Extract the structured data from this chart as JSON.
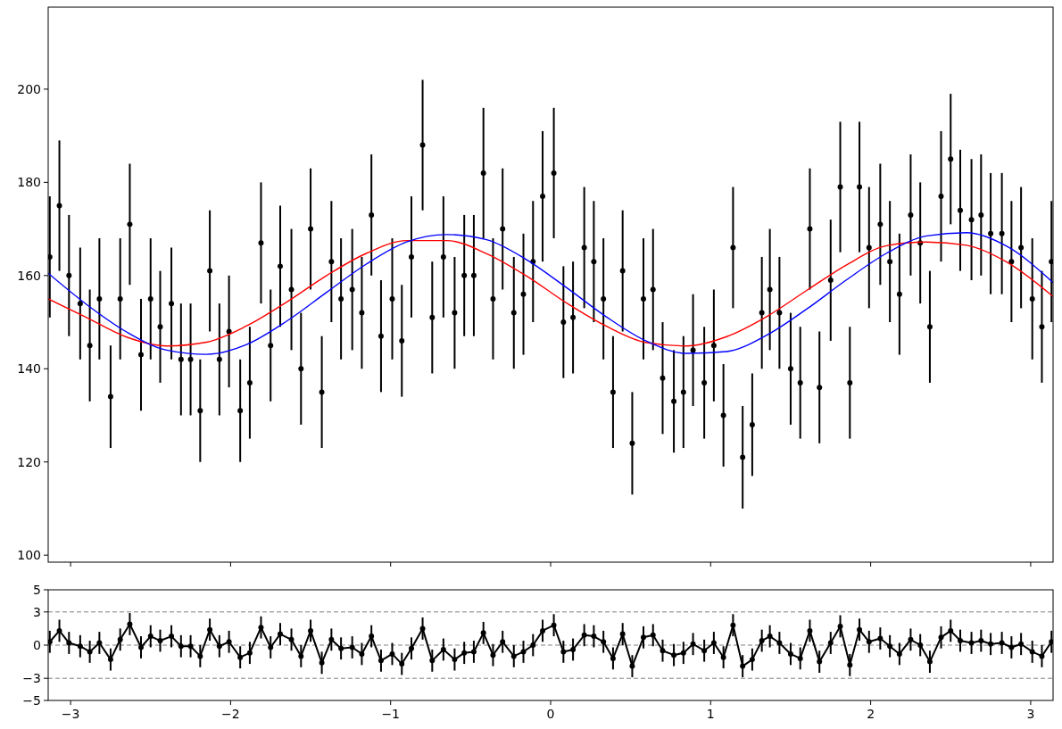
{
  "chart_data": [
    {
      "type": "scatter",
      "xlim": [
        -3.14,
        3.14
      ],
      "ylim": [
        98.5,
        217.6
      ],
      "xticks": [
        -3,
        -2,
        -1,
        0,
        1,
        2,
        3
      ],
      "yticks": [
        100,
        120,
        140,
        160,
        180,
        200
      ],
      "tick_labels": "y",
      "series": [
        {
          "color": "#000000",
          "marker": "circle",
          "x": [
            -3.13,
            -3.07,
            -3.01,
            -2.94,
            -2.88,
            -2.82,
            -2.75,
            -2.69,
            -2.63,
            -2.56,
            -2.5,
            -2.44,
            -2.37,
            -2.31,
            -2.25,
            -2.19,
            -2.13,
            -2.07,
            -2.01,
            -1.94,
            -1.88,
            -1.81,
            -1.75,
            -1.69,
            -1.62,
            -1.56,
            -1.5,
            -1.43,
            -1.37,
            -1.31,
            -1.24,
            -1.18,
            -1.12,
            -1.06,
            -0.99,
            -0.93,
            -0.87,
            -0.8,
            -0.74,
            -0.67,
            -0.6,
            -0.54,
            -0.48,
            -0.42,
            -0.36,
            -0.3,
            -0.23,
            -0.17,
            -0.11,
            -0.05,
            0.02,
            0.08,
            0.14,
            0.21,
            0.27,
            0.33,
            0.39,
            0.45,
            0.51,
            0.58,
            0.64,
            0.7,
            0.77,
            0.83,
            0.89,
            0.96,
            1.02,
            1.08,
            1.14,
            1.2,
            1.26,
            1.32,
            1.37,
            1.43,
            1.5,
            1.56,
            1.62,
            1.68,
            1.75,
            1.81,
            1.87,
            1.93,
            1.99,
            2.06,
            2.12,
            2.18,
            2.25,
            2.31,
            2.37,
            2.44,
            2.5,
            2.56,
            2.63,
            2.69,
            2.75,
            2.82,
            2.88,
            2.94,
            3.01,
            3.07,
            3.13
          ],
          "values": [
            164,
            175,
            160,
            154,
            145,
            155,
            134,
            155,
            171,
            143,
            155,
            149,
            154,
            142,
            142,
            131,
            161,
            142,
            148,
            131,
            137,
            167,
            145,
            162,
            157,
            140,
            170,
            135,
            163,
            155,
            157,
            152,
            173,
            147,
            155,
            146,
            164,
            188,
            151,
            164,
            152,
            160,
            160,
            182,
            155,
            170,
            152,
            156,
            163,
            177,
            182,
            150,
            151,
            166,
            163,
            155,
            135,
            161,
            124,
            155,
            157,
            138,
            133,
            135,
            144,
            137,
            145,
            130,
            166,
            121,
            128,
            152,
            157,
            152,
            140,
            137,
            170,
            136,
            159,
            179,
            137,
            179,
            166,
            171,
            163,
            156,
            173,
            167,
            149,
            177,
            185,
            174,
            172,
            173,
            169,
            169,
            163,
            166,
            155,
            149,
            163
          ],
          "errors": [
            13,
            14,
            13,
            12,
            12,
            13,
            11,
            13,
            13,
            12,
            13,
            12,
            12,
            12,
            12,
            11,
            13,
            12,
            12,
            11,
            12,
            13,
            12,
            13,
            13,
            12,
            13,
            12,
            13,
            13,
            13,
            12,
            13,
            12,
            13,
            12,
            13,
            14,
            12,
            13,
            12,
            13,
            13,
            14,
            13,
            13,
            12,
            13,
            13,
            14,
            14,
            12,
            12,
            13,
            13,
            13,
            12,
            13,
            11,
            13,
            13,
            12,
            11,
            12,
            12,
            12,
            12,
            11,
            13,
            11,
            11,
            12,
            13,
            12,
            12,
            12,
            13,
            12,
            13,
            14,
            12,
            14,
            13,
            13,
            13,
            13,
            13,
            13,
            12,
            14,
            14,
            13,
            13,
            13,
            13,
            13,
            13,
            13,
            13,
            12,
            13
          ]
        },
        {
          "type": "line",
          "color": "#ff0000",
          "x": [
            -3.14,
            -2.9,
            -2.65,
            -2.4,
            -2.15,
            -1.9,
            -1.65,
            -1.4,
            -1.15,
            -0.9,
            -0.65,
            -0.4,
            -0.15,
            0.1,
            0.35,
            0.6,
            0.85,
            1.1,
            1.35,
            1.6,
            1.85,
            2.1,
            2.35,
            2.6,
            2.85,
            3.14
          ],
          "values": [
            155,
            151,
            146.8,
            144.9,
            145.7,
            149.2,
            154.3,
            160,
            164.8,
            167.5,
            167.5,
            164.7,
            159.9,
            154.1,
            149.1,
            145.6,
            144.9,
            146.9,
            151.2,
            156.8,
            162.3,
            166.4,
            167.2,
            166.5,
            162.9,
            155.5
          ]
        },
        {
          "type": "line",
          "color": "#0000ff",
          "x": [
            -3.14,
            -2.9,
            -2.65,
            -2.4,
            -2.15,
            -1.9,
            -1.65,
            -1.4,
            -1.15,
            -0.9,
            -0.65,
            -0.4,
            -0.15,
            0.1,
            0.35,
            0.6,
            0.85,
            1.1,
            1.35,
            1.6,
            1.85,
            2.1,
            2.35,
            2.6,
            2.85,
            3.14
          ],
          "values": [
            160.5,
            153.8,
            147.9,
            144,
            143.1,
            145.2,
            150.2,
            156.4,
            162.5,
            167.2,
            168.8,
            167.7,
            163.4,
            157.4,
            151.1,
            145.9,
            143.3,
            143.7,
            147.2,
            152.8,
            159.1,
            164.8,
            168.5,
            169.2,
            166.3,
            158.5
          ]
        }
      ]
    },
    {
      "type": "line",
      "xlim": [
        -3.14,
        3.14
      ],
      "ylim": [
        -5,
        5
      ],
      "xticks": [
        -3,
        -2,
        -1,
        0,
        1,
        2,
        3
      ],
      "yticks": [
        -5,
        -3,
        0,
        3,
        5
      ],
      "ref_lines": [
        {
          "axis": "y",
          "value": 3,
          "color": "#808080",
          "line_style": "dashed"
        },
        {
          "axis": "y",
          "value": 0,
          "color": "#808080",
          "line_style": "dashed"
        },
        {
          "axis": "y",
          "value": -3,
          "color": "#808080",
          "line_style": "dashed"
        }
      ],
      "series": [
        {
          "color": "#000000",
          "marker": "circle",
          "x": [
            -3.13,
            -3.07,
            -3.01,
            -2.94,
            -2.88,
            -2.82,
            -2.75,
            -2.69,
            -2.63,
            -2.56,
            -2.5,
            -2.44,
            -2.37,
            -2.31,
            -2.25,
            -2.19,
            -2.13,
            -2.07,
            -2.01,
            -1.94,
            -1.88,
            -1.81,
            -1.75,
            -1.69,
            -1.62,
            -1.56,
            -1.5,
            -1.43,
            -1.37,
            -1.31,
            -1.24,
            -1.18,
            -1.12,
            -1.06,
            -0.99,
            -0.93,
            -0.87,
            -0.8,
            -0.74,
            -0.67,
            -0.6,
            -0.54,
            -0.48,
            -0.42,
            -0.36,
            -0.3,
            -0.23,
            -0.17,
            -0.11,
            -0.05,
            0.02,
            0.08,
            0.14,
            0.21,
            0.27,
            0.33,
            0.39,
            0.45,
            0.51,
            0.58,
            0.64,
            0.7,
            0.77,
            0.83,
            0.89,
            0.96,
            1.02,
            1.08,
            1.14,
            1.2,
            1.26,
            1.32,
            1.37,
            1.43,
            1.5,
            1.56,
            1.62,
            1.68,
            1.75,
            1.81,
            1.87,
            1.93,
            1.99,
            2.06,
            2.12,
            2.18,
            2.25,
            2.31,
            2.37,
            2.44,
            2.5,
            2.56,
            2.63,
            2.69,
            2.75,
            2.82,
            2.88,
            2.94,
            3.01,
            3.07,
            3.13
          ],
          "values": [
            0.3,
            1.3,
            0.2,
            -0.1,
            -0.6,
            0.2,
            -1.3,
            0.5,
            1.9,
            -0.2,
            0.8,
            0.4,
            0.8,
            -0.1,
            -0.1,
            -1,
            1.4,
            -0.1,
            0.3,
            -1.1,
            -0.7,
            1.6,
            -0.2,
            1,
            0.5,
            -1,
            1.3,
            -1.6,
            0.5,
            -0.3,
            -0.2,
            -0.8,
            0.8,
            -1.4,
            -0.8,
            -1.7,
            -0.3,
            1.5,
            -1.4,
            -0.4,
            -1.3,
            -0.7,
            -0.6,
            1.1,
            -0.9,
            0.3,
            -1,
            -0.6,
            0,
            1.3,
            1.8,
            -0.6,
            -0.4,
            0.9,
            0.8,
            0.3,
            -1.2,
            1,
            -1.9,
            0.7,
            0.9,
            -0.5,
            -0.9,
            -0.7,
            0.1,
            -0.5,
            0.2,
            -1.1,
            1.8,
            -1.9,
            -1.3,
            0.4,
            0.8,
            0.2,
            -0.8,
            -1.2,
            1.3,
            -1.5,
            0.2,
            1.7,
            -1.8,
            1.4,
            0.3,
            0.6,
            -0.1,
            -0.8,
            0.5,
            0,
            -1.5,
            0.7,
            1.3,
            0.4,
            0.2,
            0.4,
            0.1,
            0.2,
            -0.2,
            0.1,
            -0.6,
            -1,
            0.3
          ],
          "errors": [
            1,
            1,
            1,
            1,
            1,
            1,
            1,
            1,
            1,
            1,
            1,
            1,
            1,
            1,
            1,
            1,
            1,
            1,
            1,
            1,
            1,
            1,
            1,
            1,
            1,
            1,
            1,
            1,
            1,
            1,
            1,
            1,
            1,
            1,
            1,
            1,
            1,
            1,
            1,
            1,
            1,
            1,
            1,
            1,
            1,
            1,
            1,
            1,
            1,
            1,
            1,
            1,
            1,
            1,
            1,
            1,
            1,
            1,
            1,
            1,
            1,
            1,
            1,
            1,
            1,
            1,
            1,
            1,
            1,
            1,
            1,
            1,
            1,
            1,
            1,
            1,
            1,
            1,
            1,
            1,
            1,
            1,
            1,
            1,
            1,
            1,
            1,
            1,
            1,
            1,
            1,
            1,
            1,
            1,
            1,
            1,
            1,
            1,
            1,
            1,
            1
          ]
        }
      ]
    }
  ]
}
